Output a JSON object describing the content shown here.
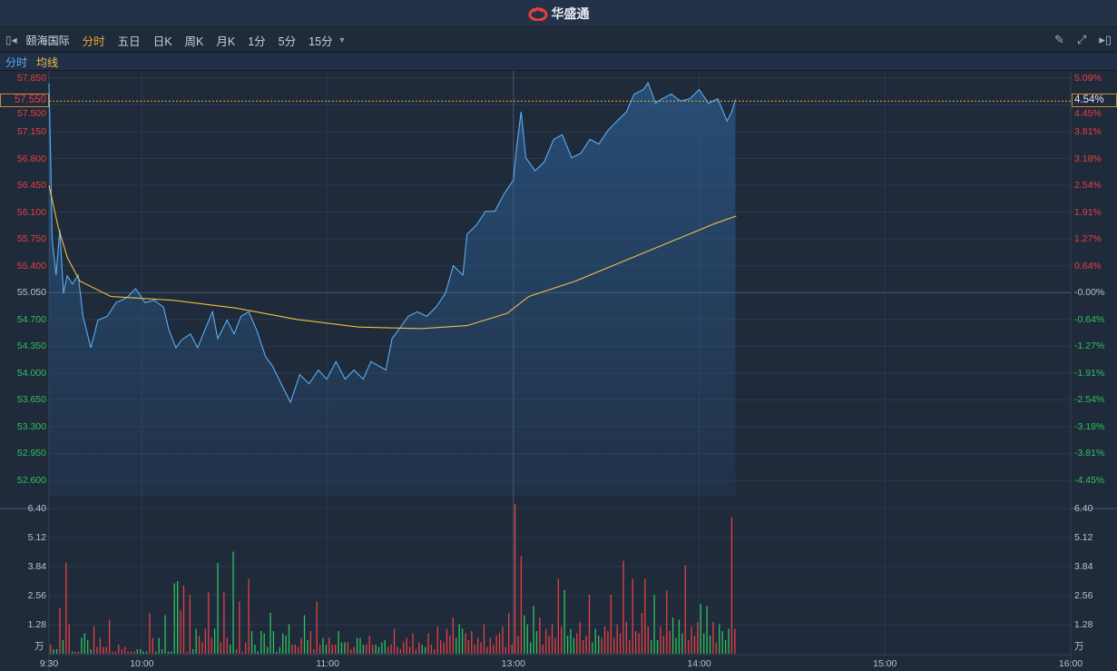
{
  "app": {
    "brand": "华盛通",
    "logo_icon": "huasheng-logo-icon"
  },
  "toolbar": {
    "stock_name": "颐海国际",
    "tabs": [
      "分时",
      "五日",
      "日K",
      "周K",
      "月K",
      "1分",
      "5分",
      "15分"
    ],
    "active_tab": "分时",
    "icons": [
      "collapse-left-icon",
      "pencil-icon",
      "fullscreen-icon",
      "collapse-right-icon"
    ]
  },
  "legend": {
    "price_label": "分时",
    "avg_label": "均线"
  },
  "colors": {
    "up": "#e8403f",
    "down": "#2fc25b",
    "price_line": "#5aaef0",
    "avg_line": "#f0c040",
    "accent": "#f0a832"
  },
  "chart_data": {
    "type": "line",
    "title": "颐海国际 分时",
    "prev_close": 55.05,
    "current_price": "57.550",
    "current_change": "4.54%",
    "price_ticks": [
      "57.850",
      "57.500",
      "57.150",
      "56.800",
      "56.450",
      "56.100",
      "55.750",
      "55.400",
      "55.050",
      "54.700",
      "54.350",
      "54.000",
      "53.650",
      "53.300",
      "52.950",
      "52.600"
    ],
    "pct_ticks": [
      "5.09%",
      "4.45%",
      "3.81%",
      "3.18%",
      "2.54%",
      "1.91%",
      "1.27%",
      "0.64%",
      "-0.00%",
      "-0.64%",
      "-1.27%",
      "-1.91%",
      "-2.54%",
      "-3.18%",
      "-3.81%",
      "-4.45%"
    ],
    "ylim": [
      52.6,
      57.85
    ],
    "time_ticks": [
      "9:30",
      "10:00",
      "11:00",
      "13:00",
      "14:00",
      "15:00",
      "16:00"
    ],
    "time_tick_minutes": [
      0,
      30,
      90,
      150,
      210,
      270,
      330
    ],
    "total_minutes": 330,
    "price_series": [
      [
        0,
        57.78
      ],
      [
        0.6,
        56.7
      ],
      [
        1,
        55.75
      ],
      [
        2.3,
        55.28
      ],
      [
        3.5,
        55.87
      ],
      [
        4.7,
        55.04
      ],
      [
        5.9,
        55.27
      ],
      [
        7.6,
        55.16
      ],
      [
        9.4,
        55.28
      ],
      [
        11,
        54.74
      ],
      [
        13.5,
        54.33
      ],
      [
        15.8,
        54.69
      ],
      [
        18.8,
        54.74
      ],
      [
        21.7,
        54.92
      ],
      [
        25,
        54.98
      ],
      [
        28,
        55.1
      ],
      [
        31,
        54.92
      ],
      [
        34,
        54.95
      ],
      [
        37,
        54.86
      ],
      [
        38.7,
        54.57
      ],
      [
        41,
        54.33
      ],
      [
        42.8,
        54.43
      ],
      [
        45.7,
        54.51
      ],
      [
        48,
        54.33
      ],
      [
        50.4,
        54.57
      ],
      [
        52.8,
        54.8
      ],
      [
        54.5,
        54.45
      ],
      [
        57.5,
        54.69
      ],
      [
        59.8,
        54.51
      ],
      [
        62,
        54.74
      ],
      [
        64.5,
        54.8
      ],
      [
        67,
        54.57
      ],
      [
        70,
        54.21
      ],
      [
        72.2,
        54.09
      ],
      [
        75,
        53.86
      ],
      [
        78,
        53.62
      ],
      [
        81,
        53.98
      ],
      [
        84,
        53.86
      ],
      [
        87,
        54.04
      ],
      [
        89.7,
        53.92
      ],
      [
        92.7,
        54.15
      ],
      [
        95.6,
        53.92
      ],
      [
        98.5,
        54.04
      ],
      [
        101.5,
        53.92
      ],
      [
        104,
        54.15
      ],
      [
        108.8,
        54.04
      ],
      [
        110.8,
        54.45
      ],
      [
        113,
        54.57
      ],
      [
        116,
        54.74
      ],
      [
        119,
        54.8
      ],
      [
        122,
        54.74
      ],
      [
        125,
        54.86
      ],
      [
        128,
        55.04
      ],
      [
        130.6,
        55.4
      ],
      [
        133.7,
        55.28
      ],
      [
        135,
        55.81
      ],
      [
        138,
        55.93
      ],
      [
        141,
        56.11
      ],
      [
        144,
        56.11
      ],
      [
        147,
        56.34
      ],
      [
        150,
        56.52
      ],
      [
        151,
        56.93
      ],
      [
        152.5,
        57.41
      ],
      [
        154,
        56.81
      ],
      [
        157,
        56.64
      ],
      [
        160,
        56.76
      ],
      [
        163,
        57.05
      ],
      [
        165.8,
        57.11
      ],
      [
        168.8,
        56.81
      ],
      [
        171.8,
        56.87
      ],
      [
        174.7,
        57.05
      ],
      [
        177.6,
        56.99
      ],
      [
        180.6,
        57.17
      ],
      [
        183.5,
        57.29
      ],
      [
        186.5,
        57.41
      ],
      [
        189,
        57.64
      ],
      [
        192,
        57.7
      ],
      [
        193.5,
        57.79
      ],
      [
        195.9,
        57.52
      ],
      [
        198,
        57.58
      ],
      [
        201,
        57.64
      ],
      [
        204,
        57.55
      ],
      [
        207,
        57.58
      ],
      [
        210,
        57.7
      ],
      [
        213,
        57.52
      ],
      [
        216,
        57.58
      ],
      [
        219,
        57.29
      ],
      [
        220.5,
        57.41
      ],
      [
        221.7,
        57.57
      ]
    ],
    "avg_series": [
      [
        0,
        56.45
      ],
      [
        3,
        55.9
      ],
      [
        6,
        55.5
      ],
      [
        10,
        55.2
      ],
      [
        20,
        55.0
      ],
      [
        40,
        54.95
      ],
      [
        60,
        54.85
      ],
      [
        80,
        54.7
      ],
      [
        100,
        54.6
      ],
      [
        120,
        54.58
      ],
      [
        135,
        54.62
      ],
      [
        148,
        54.78
      ],
      [
        155,
        55.0
      ],
      [
        170,
        55.2
      ],
      [
        185,
        55.45
      ],
      [
        200,
        55.7
      ],
      [
        215,
        55.95
      ],
      [
        222,
        56.05
      ]
    ],
    "volume_unit": "万",
    "volume_ticks": [
      "6.40",
      "5.12",
      "3.84",
      "2.56",
      "1.28"
    ],
    "volume_max": 6.4,
    "volume": [
      0.4,
      0.2,
      0.2,
      2.0,
      0.6,
      4.0,
      1.3,
      0.1,
      0.1,
      0.1,
      0.7,
      0.9,
      0.6,
      0.2,
      1.2,
      0.3,
      0.7,
      0.3,
      0.3,
      1.5,
      0.1,
      0.1,
      0.4,
      0.2,
      0.3,
      0.1,
      0.1,
      0.1,
      0.2,
      0.2,
      0.1,
      0.1,
      1.8,
      0.7,
      0.1,
      0.7,
      0.2,
      1.7,
      0.1,
      0.1,
      3.1,
      3.2,
      1.9,
      3.0,
      0.1,
      2.6,
      0.2,
      1.1,
      0.8,
      0.5,
      1.1,
      2.7,
      0.7,
      1.1,
      4.0,
      0.5,
      2.7,
      0.7,
      0.4,
      4.5,
      0.2,
      2.3,
      0.1,
      0.5,
      3.3,
      1.0,
      0.4,
      0.1,
      1.0,
      0.9,
      0.3,
      1.8,
      1.0,
      0.1,
      0.3,
      0.9,
      0.8,
      1.3,
      0.4,
      0.4,
      0.3,
      0.7,
      1.7,
      0.6,
      1.0,
      0.2,
      2.3,
      0.4,
      0.7,
      0.4,
      0.7,
      0.4,
      0.4,
      1.0,
      0.5,
      0.5,
      0.5,
      0.2,
      0.3,
      0.7,
      0.7,
      0.4,
      0.4,
      0.8,
      0.4,
      0.4,
      0.3,
      0.5,
      0.6,
      0.3,
      0.4,
      1.1,
      0.3,
      0.2,
      0.5,
      0.7,
      0.3,
      0.9,
      0.2,
      0.5,
      0.4,
      0.3,
      0.9,
      0.4,
      0.2,
      1.2,
      0.6,
      0.5,
      1.1,
      0.8,
      1.6,
      0.7,
      1.3,
      1.1,
      0.9,
      0.6,
      1.0,
      0.4,
      0.7,
      0.5,
      1.3,
      0.3,
      0.7,
      0.4,
      0.8,
      0.9,
      1.2,
      0.3,
      1.8,
      0.4,
      6.6,
      0.8,
      4.3,
      1.7,
      1.3,
      0.5,
      2.1,
      1.0,
      1.6,
      0.4,
      1.1,
      0.8,
      1.3,
      0.7,
      3.3,
      1.2,
      2.8,
      0.8,
      1.1,
      0.7,
      0.9,
      1.4,
      0.6,
      0.8,
      2.6,
      0.5,
      1.1,
      0.8,
      0.7,
      1.2,
      1.0,
      2.6,
      0.7,
      1.3,
      0.9,
      4.1,
      1.4,
      0.6,
      3.3,
      1.0,
      0.9,
      1.8,
      3.3,
      1.2,
      0.6,
      2.6,
      0.6,
      1.2,
      0.8,
      2.8,
      1.0,
      1.6,
      0.7,
      1.5,
      0.9,
      3.9,
      0.6,
      1.2,
      0.8,
      1.4,
      2.2,
      0.9,
      2.1,
      0.8,
      1.4,
      0.5,
      1.3,
      1.0,
      0.6,
      1.1,
      6.0,
      1.1
    ]
  }
}
